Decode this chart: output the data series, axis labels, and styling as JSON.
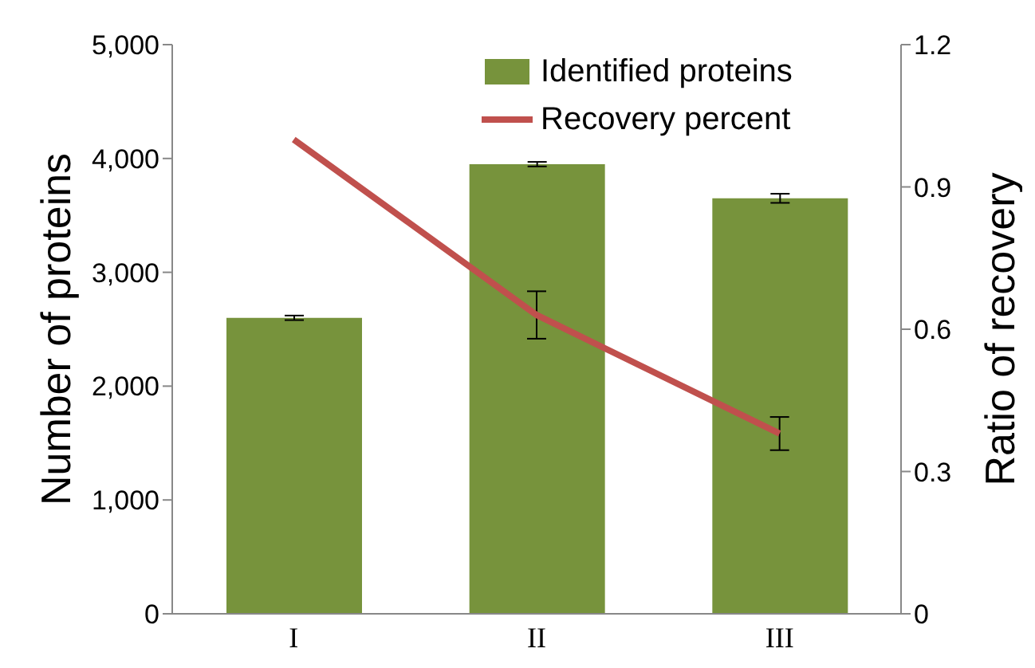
{
  "chart_data": {
    "type": "bar",
    "categories": [
      "I",
      "II",
      "III"
    ],
    "ylabel": "Number of proteins",
    "y2label": "Ratio of recovery",
    "series": [
      {
        "name": "Identified proteins",
        "color": "#77933c",
        "values": [
          2600,
          3950,
          3650
        ],
        "errors": [
          20,
          20,
          40
        ]
      },
      {
        "name": "Recovery percent",
        "type": "line",
        "axis": "y2",
        "color": "#c0504d",
        "values": [
          1.0,
          0.63,
          0.38
        ],
        "errors": [
          null,
          0.05,
          0.035
        ]
      }
    ],
    "ylim": [
      0,
      5000
    ],
    "yticks": [
      0,
      {
        "value": 1000,
        "label": "1,000"
      },
      {
        "value": 2000,
        "label": "2,000"
      },
      {
        "value": 3000,
        "label": "3,000"
      },
      {
        "value": 4000,
        "label": "4,000"
      },
      {
        "value": 5000,
        "label": "5,000"
      }
    ],
    "y2lim": [
      0,
      1.2
    ],
    "y2ticks": [
      0,
      0.3,
      0.6,
      0.9,
      1.2
    ],
    "grid": false,
    "legend": "top right",
    "marker": "none"
  }
}
